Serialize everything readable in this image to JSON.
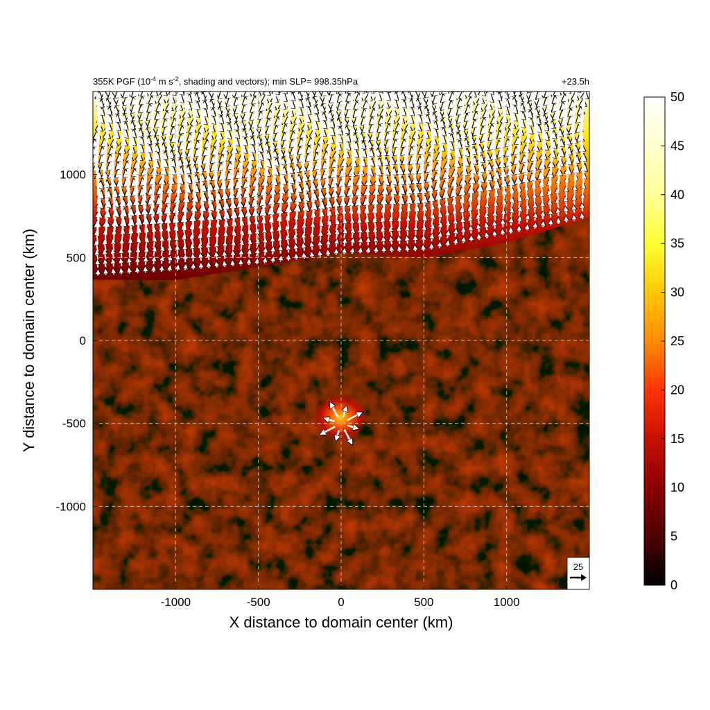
{
  "chart_data": {
    "type": "heatmap",
    "title_left": "355K PGF (10",
    "title_exp1": "-4",
    "title_mid": " m s",
    "title_exp2": "-2",
    "title_rest": ", shading and vectors); min SLP= 998.35hPa",
    "title_right": "+23.5h",
    "xlabel": "X distance to domain center (km)",
    "ylabel": "Y distance to domain center (km)",
    "xlim": [
      -1500,
      1500
    ],
    "ylim": [
      -1500,
      1500
    ],
    "xticks": [
      -1000,
      -500,
      0,
      500,
      1000
    ],
    "xtick_labels": [
      "-1000",
      "-500",
      "0",
      "500",
      "1000"
    ],
    "yticks": [
      -1000,
      -500,
      0,
      500,
      1000
    ],
    "ytick_labels": [
      "-1000",
      "-500",
      "0",
      "500",
      "1000"
    ],
    "grid": true,
    "colorbar": {
      "range": [
        0,
        50
      ],
      "ticks": [
        0,
        5,
        10,
        15,
        20,
        25,
        30,
        35,
        40,
        45,
        50
      ],
      "tick_labels": [
        "0",
        "5",
        "10",
        "15",
        "20",
        "25",
        "30",
        "35",
        "40",
        "45",
        "50"
      ],
      "colors": [
        "#000000",
        "#4d0000",
        "#8b0000",
        "#c81000",
        "#ff3300",
        "#ff8c00",
        "#ffc800",
        "#ffff33",
        "#ffff99",
        "#ffffff"
      ]
    },
    "reference_vector": {
      "label": "25",
      "value": 25
    },
    "vector_color": "#ffffff",
    "features": {
      "northern_band_boundary_y": [
        [
          -1500,
          450
        ],
        [
          -1000,
          480
        ],
        [
          -500,
          520
        ],
        [
          0,
          580
        ],
        [
          500,
          600
        ],
        [
          1000,
          700
        ],
        [
          1500,
          800
        ]
      ],
      "storm_center": {
        "x": 0,
        "y": -500,
        "value": 28
      }
    }
  }
}
